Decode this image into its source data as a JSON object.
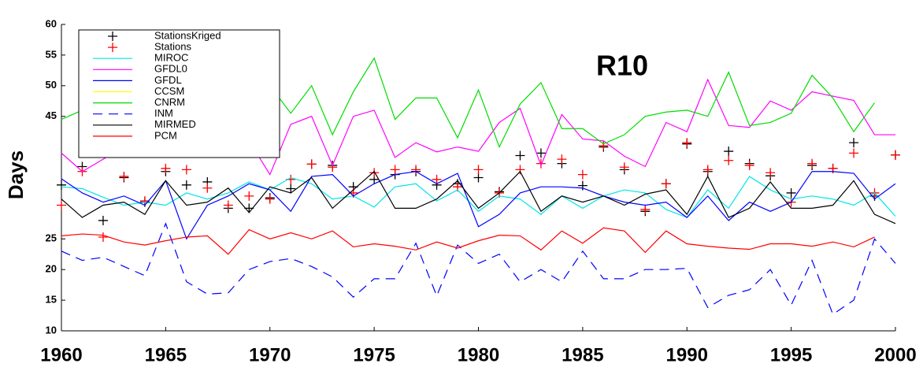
{
  "chart_data": {
    "type": "line",
    "title": "R10",
    "y_label": "Days",
    "x": [
      1960,
      1961,
      1962,
      1963,
      1964,
      1965,
      1966,
      1967,
      1968,
      1969,
      1970,
      1971,
      1972,
      1973,
      1974,
      1975,
      1976,
      1977,
      1978,
      1979,
      1980,
      1981,
      1982,
      1983,
      1984,
      1985,
      1986,
      1987,
      1988,
      1989,
      1990,
      1991,
      1992,
      1993,
      1994,
      1995,
      1996,
      1997,
      1998,
      1999,
      2000
    ],
    "xlim": [
      1960,
      2000
    ],
    "xticks": [
      1960,
      1965,
      1970,
      1975,
      1980,
      1985,
      1990,
      1995,
      2000
    ],
    "ylim": [
      10,
      60
    ],
    "yticks": [
      10,
      15,
      20,
      25,
      45,
      50,
      55,
      60
    ],
    "legend": "upper left",
    "series": [
      {
        "name": "StationsKriged",
        "color": "#000000",
        "marker": "+",
        "values": [
          33.8,
          36.8,
          28,
          35,
          31,
          36,
          33.8,
          34.3,
          30,
          30,
          31.7,
          33.2,
          37.2,
          37,
          33.5,
          34.7,
          35.5,
          36,
          33.8,
          34,
          35,
          32.7,
          38.6,
          39,
          37.3,
          33.7,
          40,
          36.3,
          29.5,
          34,
          40.5,
          36,
          39.3,
          37.3,
          35.3,
          32.5,
          37,
          36.5,
          40.7,
          32,
          38.7
        ]
      },
      {
        "name": "Stations",
        "color": "#ff0000",
        "marker": "+",
        "values": [
          30.5,
          36,
          25.3,
          35.2,
          31.2,
          36.5,
          36.3,
          33.3,
          30.5,
          32,
          31.5,
          34.7,
          37.2,
          36.7,
          32.5,
          35.8,
          36.3,
          36.3,
          34.7,
          33.5,
          36.3,
          32.5,
          36.3,
          37.3,
          38,
          35.5,
          40.2,
          36.7,
          29.8,
          34,
          40.7,
          36.3,
          37.8,
          37,
          35.8,
          31,
          37.3,
          36.5,
          39,
          32.5,
          38.7
        ]
      },
      {
        "name": "MIROC",
        "color": "#00e5e5",
        "values": [
          33.5,
          33.2,
          31.8,
          30.5,
          31,
          30.5,
          32.5,
          31.5,
          32.5,
          34.3,
          33,
          35,
          34,
          31.5,
          32,
          30.2,
          33.5,
          34,
          31.2,
          33,
          29.5,
          32,
          31.5,
          29,
          32,
          30,
          32,
          33,
          32.5,
          29.8,
          28.5,
          33,
          30,
          35.2,
          33,
          31.5,
          32,
          31.5,
          30.5,
          32.5,
          28.7
        ]
      },
      {
        "name": "GFDL0",
        "color": "#ff00ff",
        "values": [
          39,
          36,
          38,
          40,
          39,
          42,
          40,
          41,
          38.7,
          41,
          35.5,
          43.7,
          45,
          37,
          45,
          46,
          38.3,
          40.7,
          39.2,
          40,
          39.3,
          44,
          46.3,
          37,
          45.3,
          41.3,
          41,
          38.5,
          36.8,
          44,
          42.5,
          51,
          43.5,
          43.2,
          47.5,
          46,
          49,
          48.3,
          47.6,
          42,
          42
        ]
      },
      {
        "name": "GFDL",
        "color": "#0000ff",
        "values": [
          34.8,
          32.5,
          31,
          32,
          30.5,
          34.5,
          25,
          30.5,
          32,
          34,
          33,
          29.5,
          35.2,
          35.5,
          32,
          34,
          35.5,
          36,
          34,
          35.7,
          27,
          29,
          32.5,
          33.5,
          33.5,
          33.3,
          32,
          31,
          30.5,
          31,
          28.5,
          32,
          28,
          31,
          29.5,
          31,
          36,
          36,
          35.7,
          31.5,
          34
        ]
      },
      {
        "name": "CCSM",
        "color": "#ffff00",
        "values": [
          null,
          null,
          null,
          null,
          null,
          null,
          null,
          null,
          null,
          null,
          null,
          null,
          null,
          null,
          null,
          null,
          null,
          null,
          null,
          null,
          null,
          null,
          null,
          null,
          null,
          null,
          null,
          null,
          null,
          null,
          null,
          null,
          null,
          null,
          null,
          null,
          null,
          null,
          null,
          null,
          null
        ]
      },
      {
        "name": "CNRM",
        "color": "#00dd00",
        "values": [
          44.5,
          46,
          47,
          46,
          47,
          48,
          47,
          46,
          48,
          49,
          50,
          45.5,
          50,
          42,
          49,
          54.5,
          44.5,
          48,
          48,
          41.5,
          49.3,
          40,
          47,
          50.5,
          43,
          43,
          40.5,
          42,
          45,
          45.7,
          46,
          45,
          52.2,
          43.5,
          44,
          45.5,
          51.7,
          48,
          42.5,
          47.2,
          null
        ]
      },
      {
        "name": "INM",
        "color": "#0000ff",
        "dash": true,
        "values": [
          23,
          21.5,
          22,
          20.5,
          19,
          27.5,
          18,
          16,
          16.2,
          20,
          21.3,
          21.8,
          20.5,
          18.8,
          15.5,
          18.5,
          18.5,
          24.3,
          15.7,
          24,
          21,
          22.5,
          18,
          20,
          18,
          23,
          18.5,
          18.5,
          20,
          20,
          20.2,
          13.8,
          15.8,
          16.7,
          20,
          14.2,
          21.5,
          12.7,
          15,
          25,
          21
        ]
      },
      {
        "name": "MIRMED",
        "color": "#000000",
        "values": [
          31.5,
          28.5,
          30.5,
          31,
          29,
          34.5,
          30.5,
          31,
          33.3,
          29.3,
          33.5,
          32.5,
          35,
          30,
          33,
          36,
          30,
          30,
          31.5,
          34.5,
          30,
          32.5,
          36,
          29.5,
          32,
          31,
          32,
          30.5,
          32.3,
          33,
          29,
          35.2,
          28.5,
          30,
          34.3,
          30,
          30,
          30.5,
          34.5,
          29,
          27.5
        ]
      },
      {
        "name": "PCM",
        "color": "#ff0000",
        "values": [
          25.5,
          25.8,
          25.6,
          24.5,
          24,
          24.7,
          25.3,
          25.5,
          22.5,
          26.5,
          25,
          26,
          25,
          26.3,
          23.7,
          24.2,
          23.8,
          23.2,
          24.5,
          23.5,
          24.7,
          25.6,
          25.5,
          23.2,
          26.3,
          24.3,
          26.8,
          26.3,
          22.8,
          26.3,
          24.2,
          23.8,
          23.5,
          23.3,
          24.2,
          24.2,
          23.8,
          24.5,
          23.7,
          25.3,
          null
        ]
      }
    ]
  }
}
